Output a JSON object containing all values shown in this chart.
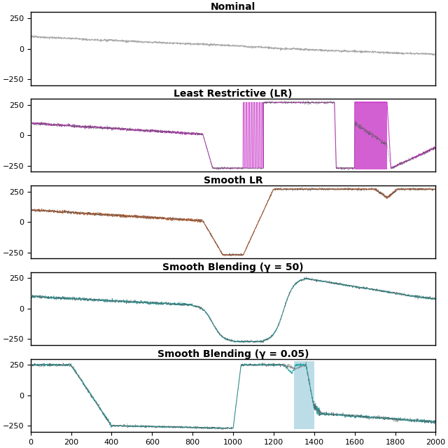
{
  "titles": [
    "Nominal",
    "Least Restrictive (LR)",
    "Smooth LR",
    "Smooth Blending (γ = 50)",
    "Smooth Blending (γ = 0.05)"
  ],
  "xlim": [
    0,
    2000
  ],
  "ylim": [
    -300,
    300
  ],
  "yticks": [
    -250,
    0,
    250
  ],
  "xticks": [
    0,
    200,
    400,
    600,
    800,
    1000,
    1200,
    1400,
    1600,
    1800,
    2000
  ],
  "nominal_color": "#aaaaaa",
  "lr_color": "#cc44cc",
  "lr_fill_color": "#cc44cc",
  "smooth_lr_color": "#cc6633",
  "smooth_blend_color": "#33aaaa",
  "smooth_blend005_fill_color": "#99ccdd",
  "dotted_color": "#555555",
  "fig_width": 6.4,
  "fig_height": 6.4,
  "title_fontsize": 10,
  "tick_fontsize": 8,
  "noise_scale": 5.0
}
